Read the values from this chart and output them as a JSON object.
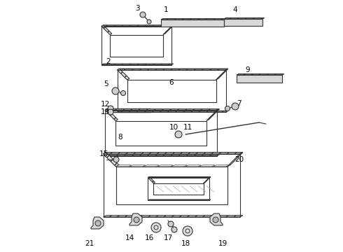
{
  "background_color": "#ffffff",
  "line_color": "#333333",
  "text_color": "#000000",
  "hatch_color": "#666666",
  "label_font_size": 7.5
}
